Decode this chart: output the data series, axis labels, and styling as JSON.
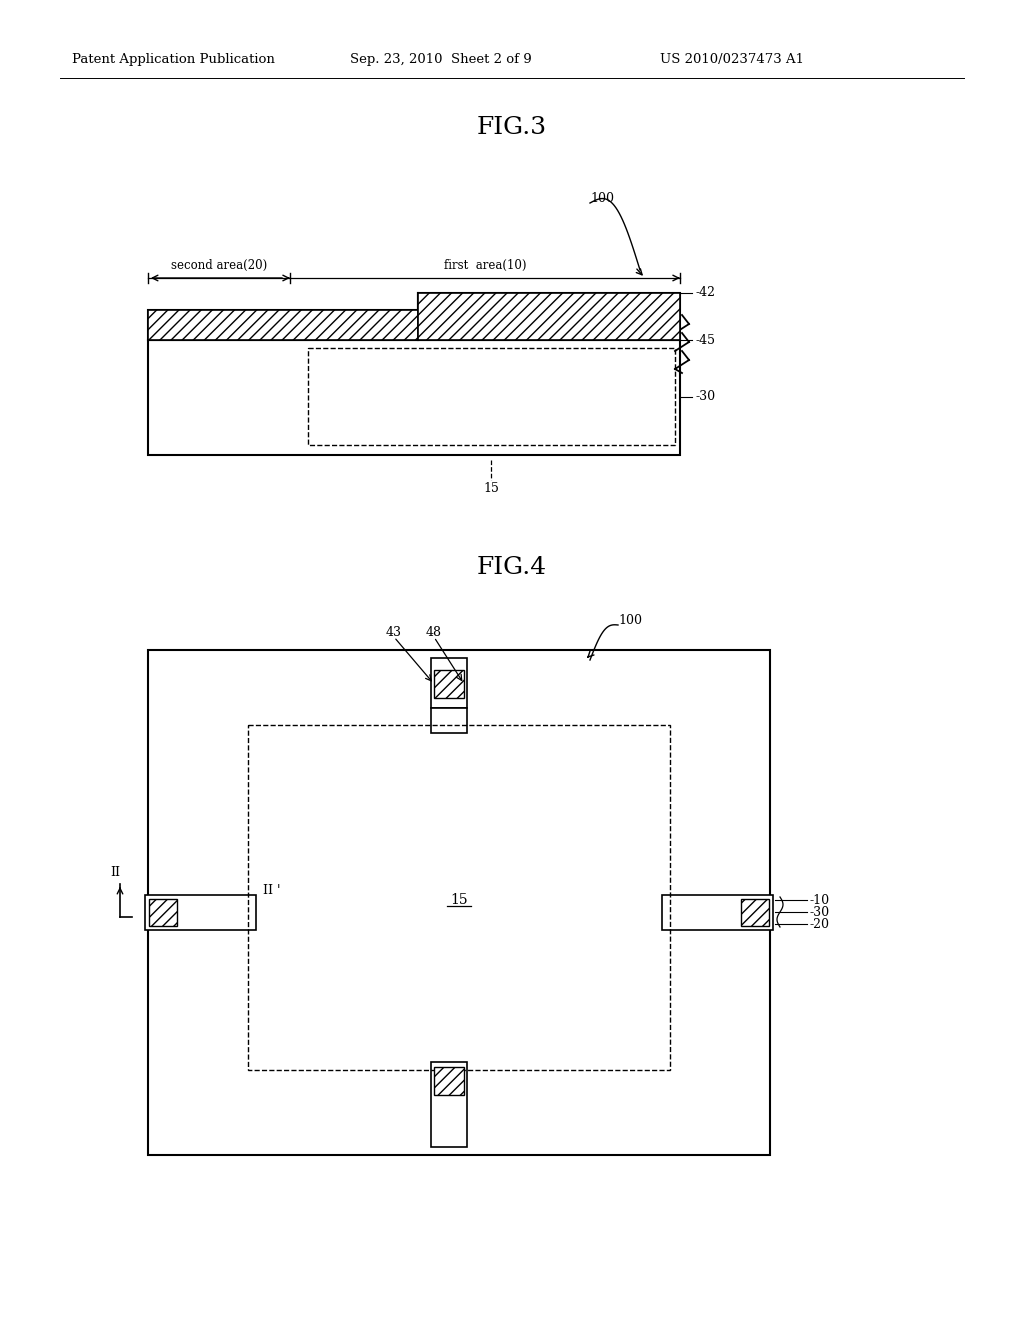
{
  "bg_color": "#ffffff",
  "header_text": "Patent Application Publication",
  "header_date": "Sep. 23, 2010  Sheet 2 of 9",
  "header_patent": "US 2010/0237473 A1",
  "fig3_title": "FIG.3",
  "fig4_title": "FIG.4",
  "label_100a": "100",
  "label_100b": "100",
  "label_42": "-42",
  "label_45": "-45",
  "label_30a": "-30",
  "label_15a": "15",
  "label_second_area": "second area(20)",
  "label_first_area": "first  area(10)",
  "label_43": "43",
  "label_48": "48",
  "label_15b": "15",
  "label_10": "-10",
  "label_30b": "-30",
  "label_20": "-20",
  "label_II": "II",
  "label_IIp": "II '"
}
